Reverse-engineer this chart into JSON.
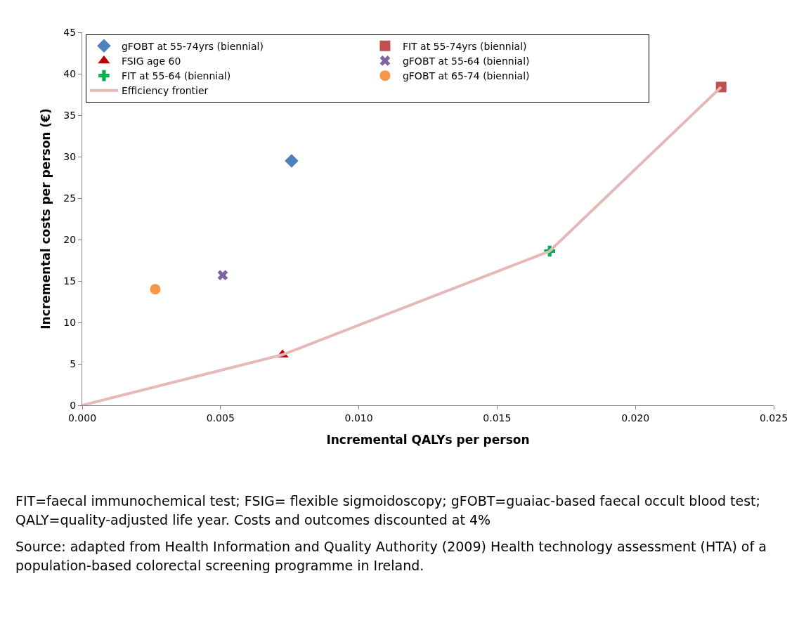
{
  "chart_data": {
    "type": "scatter",
    "xlabel": "Incremental QALYs per person",
    "ylabel": "Incremental costs per person (€)",
    "series": [
      {
        "name": "gFOBT at 55-74yrs (biennial)",
        "color": "#4f81bd",
        "marker": "diamond",
        "x": [
          0.00757
        ],
        "values": [
          29.5
        ]
      },
      {
        "name": "FIT at 55-74yrs (biennial)",
        "color": "#c0504d",
        "marker": "square",
        "x": [
          0.0231
        ],
        "values": [
          38.4
        ]
      },
      {
        "name": "FSIG age 60",
        "color": "#c00000",
        "marker": "triangle",
        "x": [
          0.00724
        ],
        "values": [
          6.1
        ]
      },
      {
        "name": "gFOBT at 55-64 (biennial)",
        "color": "#8064a2",
        "marker": "x",
        "x": [
          0.00508
        ],
        "values": [
          15.7
        ]
      },
      {
        "name": "FIT at 55-64 (biennial)",
        "color": "#00b050",
        "marker": "cross",
        "x": [
          0.0169
        ],
        "values": [
          18.6
        ]
      },
      {
        "name": "gFOBT at 65-74 (biennial)",
        "color": "#f79646",
        "marker": "circle",
        "x": [
          0.00264
        ],
        "values": [
          14.0
        ]
      },
      {
        "name": "Efficiency frontier",
        "type": "line",
        "color": "#e6b9b8",
        "marker": "none",
        "x": [
          0,
          0.00724,
          0.0169,
          0.0231
        ],
        "values": [
          0,
          6.1,
          18.6,
          38.4
        ]
      }
    ],
    "xlim": [
      0,
      0.025
    ],
    "xticks": [
      {
        "value": 0,
        "label": "0.000"
      },
      {
        "value": 0.005,
        "label": "0.005"
      },
      {
        "value": 0.01,
        "label": "0.010"
      },
      {
        "value": 0.015,
        "label": "0.015"
      },
      {
        "value": 0.02,
        "label": "0.020"
      },
      {
        "value": 0.025,
        "label": "0.025"
      }
    ],
    "ylim": [
      0,
      45
    ],
    "yticks": [
      0,
      5,
      10,
      15,
      20,
      25,
      30,
      35,
      40,
      45
    ],
    "grid": false,
    "legend": "top left",
    "annotations": [
      "FIT=faecal immunochemical test; FSIG= flexible sigmoidoscopy; gFOBT=guaiac-based faecal occult blood test; QALY=quality-adjusted life year. Costs and outcomes discounted at 4%",
      "Source: adapted from Health Information and Quality Authority (2009) Health technology assessment (HTA) of a population-based colorectal screening programme in Ireland."
    ]
  }
}
